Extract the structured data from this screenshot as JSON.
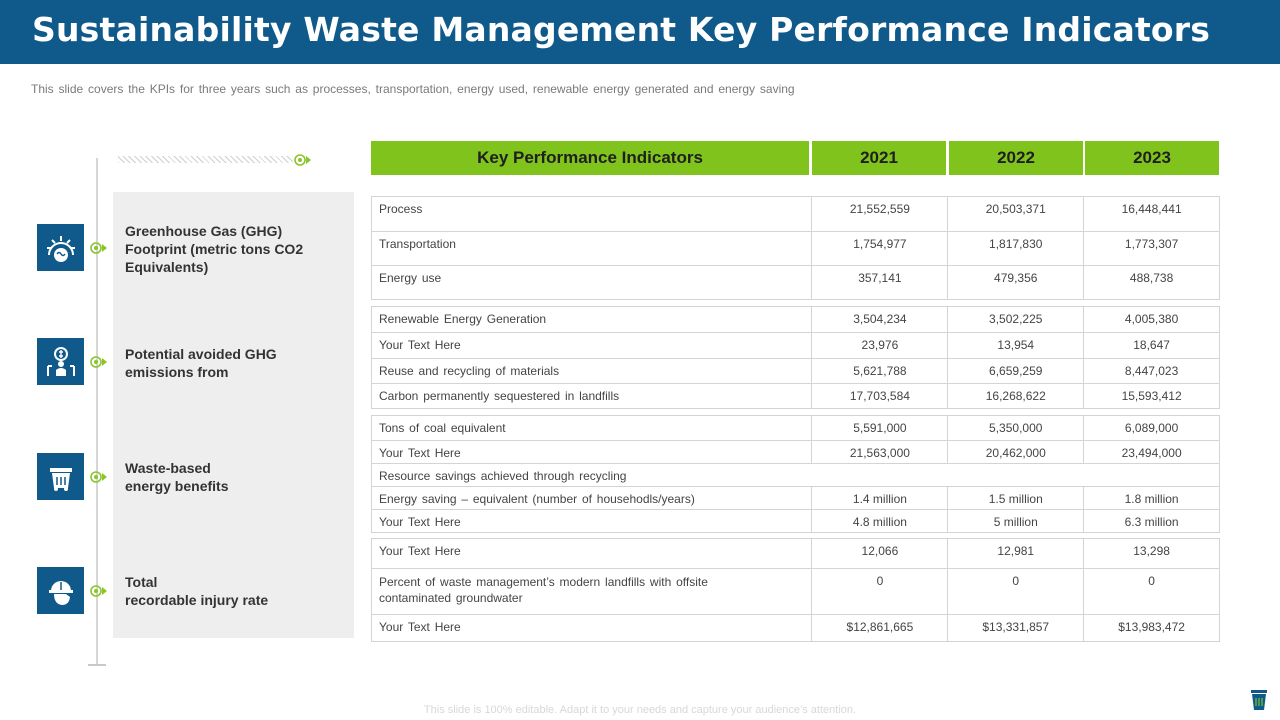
{
  "title": "Sustainability Waste Management Key Performance Indicators",
  "subtitle": "This slide covers the KPIs for three years such as processes, transportation, energy used, renewable energy generated and energy saving",
  "header": {
    "kpi": "Key Performance Indicators",
    "years": [
      "2021",
      "2022",
      "2023"
    ]
  },
  "categories": [
    {
      "label": "Greenhouse Gas (GHG)\nFootprint (metric tons CO2\nEquivalents)",
      "icon": "earth-heat-icon"
    },
    {
      "label": "Potential avoided GHG\nemissions from",
      "icon": "emission-money-icon"
    },
    {
      "label": "Waste-based\nenergy benefits",
      "icon": "waste-bin-icon"
    },
    {
      "label": "Total\nrecordable injury rate",
      "icon": "worker-helmet-icon"
    }
  ],
  "groups": [
    {
      "rows": [
        {
          "label": "Process",
          "values": [
            "21,552,559",
            "20,503,371",
            "16,448,441"
          ]
        },
        {
          "label": "Transportation",
          "values": [
            "1,754,977",
            "1,817,830",
            "1,773,307"
          ]
        },
        {
          "label": "Energy use",
          "values": [
            "357,141",
            "479,356",
            "488,738"
          ]
        }
      ]
    },
    {
      "rows": [
        {
          "label": "Renewable Energy Generation",
          "values": [
            "3,504,234",
            "3,502,225",
            "4,005,380"
          ]
        },
        {
          "label": "Your Text Here",
          "values": [
            "23,976",
            "13,954",
            "18,647"
          ]
        },
        {
          "label": "Reuse and recycling of materials",
          "values": [
            "5,621,788",
            "6,659,259",
            "8,447,023"
          ]
        },
        {
          "label": "Carbon permanently sequestered in landfills",
          "values": [
            "17,703,584",
            "16,268,622",
            "15,593,412"
          ]
        }
      ]
    },
    {
      "rows": [
        {
          "label": "Tons of coal equivalent",
          "values": [
            "5,591,000",
            "5,350,000",
            "6,089,000"
          ]
        },
        {
          "label": "Your Text Here",
          "values": [
            "21,563,000",
            "20,462,000",
            "23,494,000"
          ]
        },
        {
          "label": "Resource savings achieved through recycling",
          "span": true
        },
        {
          "label": "Energy saving – equivalent (number of househodls/years)",
          "values": [
            "1.4 million",
            "1.5 million",
            "1.8 million"
          ]
        },
        {
          "label": "Your Text Here",
          "values": [
            "4.8 million",
            "5 million",
            "6.3 million"
          ]
        }
      ]
    },
    {
      "rows": [
        {
          "label": "Your Text Here",
          "values": [
            "12,066",
            "12,981",
            "13,298"
          ]
        },
        {
          "label": "Percent of waste management’s modern landfills with offsite\ncontaminated groundwater",
          "values": [
            "0",
            "0",
            "0"
          ]
        },
        {
          "label": "Your Text Here",
          "values": [
            "$12,861,665",
            "$13,331,857",
            "$13,983,472"
          ]
        }
      ]
    }
  ],
  "footer": "This slide is 100% editable. Adapt it to your needs and capture your audience’s attention.",
  "colors": {
    "primary": "#0f5a8a",
    "accent": "#7fc31c",
    "panel": "#eeeeee"
  }
}
